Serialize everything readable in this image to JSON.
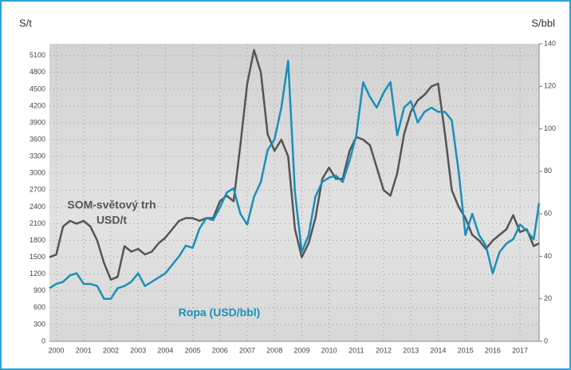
{
  "chart_data": {
    "type": "line",
    "y_label": "S/t",
    "y2_label": "S/bbl",
    "annotations": [
      "SOM-světový trh",
      "USD/t",
      "Ropa (USD/bbl)"
    ],
    "x": [
      1999.75,
      2000,
      2000.25,
      2000.5,
      2000.75,
      2001,
      2001.25,
      2001.5,
      2001.75,
      2002,
      2002.25,
      2002.5,
      2002.75,
      2003,
      2003.25,
      2003.5,
      2003.75,
      2004,
      2004.25,
      2004.5,
      2004.75,
      2005,
      2005.25,
      2005.5,
      2005.75,
      2006,
      2006.25,
      2006.5,
      2006.75,
      2007,
      2007.25,
      2007.5,
      2007.75,
      2008,
      2008.25,
      2008.5,
      2008.75,
      2009,
      2009.25,
      2009.5,
      2009.75,
      2010,
      2010.25,
      2010.5,
      2010.75,
      2011,
      2011.25,
      2011.5,
      2011.75,
      2012,
      2012.25,
      2012.5,
      2012.75,
      2013,
      2013.25,
      2013.5,
      2013.75,
      2014,
      2014.25,
      2014.5,
      2014.75,
      2015,
      2015.25,
      2015.5,
      2015.75,
      2016,
      2016.25,
      2016.5,
      2016.75,
      2017,
      2017.25,
      2017.5,
      2017.7
    ],
    "xlim": [
      1999.75,
      2017.7
    ],
    "xticks": [
      2000,
      2001,
      2002,
      2003,
      2004,
      2005,
      2006,
      2007,
      2008,
      2009,
      2010,
      2011,
      2012,
      2013,
      2014,
      2015,
      2016,
      2017
    ],
    "ylim": [
      0,
      5310
    ],
    "yticks": [
      0,
      300,
      600,
      900,
      1200,
      1500,
      1800,
      2100,
      2400,
      2700,
      3000,
      3300,
      3600,
      3900,
      4200,
      4500,
      4800,
      5100
    ],
    "y2lim": [
      0,
      140
    ],
    "y2ticks": [
      0,
      20,
      40,
      60,
      80,
      100,
      120,
      140
    ],
    "grid": true,
    "series": [
      {
        "color": "#555555",
        "axis": "y",
        "values": [
          1500,
          1550,
          2050,
          2150,
          2100,
          2150,
          2050,
          1800,
          1400,
          1100,
          1150,
          1700,
          1600,
          1650,
          1550,
          1600,
          1750,
          1850,
          2000,
          2150,
          2200,
          2200,
          2150,
          2200,
          2200,
          2500,
          2600,
          2500,
          3500,
          4600,
          5200,
          4800,
          3700,
          3400,
          3600,
          3300,
          2000,
          1500,
          1750,
          2200,
          2900,
          3100,
          2900,
          2900,
          3400,
          3650,
          3600,
          3500,
          3100,
          2700,
          2600,
          3000,
          3700,
          4100,
          4300,
          4400,
          4550,
          4600,
          3700,
          2700,
          2400,
          2200,
          1900,
          1800,
          1650,
          1800,
          1900,
          2000,
          2250,
          1950,
          2000,
          1700,
          1750
        ]
      },
      {
        "color": "#1a8fb8",
        "axis": "y2",
        "values": [
          25,
          27,
          28,
          31,
          32,
          27,
          27,
          26,
          20,
          20,
          25,
          26,
          28,
          32,
          26,
          28,
          30,
          32,
          36,
          40,
          45,
          44,
          53,
          58,
          57,
          63,
          70,
          72,
          60,
          55,
          68,
          75,
          90,
          95,
          110,
          132,
          70,
          42,
          50,
          68,
          75,
          77,
          78,
          75,
          85,
          97,
          122,
          115,
          110,
          117,
          122,
          97,
          110,
          113,
          103,
          108,
          110,
          108,
          108,
          104,
          80,
          50,
          60,
          50,
          45,
          32,
          42,
          46,
          48,
          55,
          52,
          48,
          65
        ]
      }
    ]
  }
}
